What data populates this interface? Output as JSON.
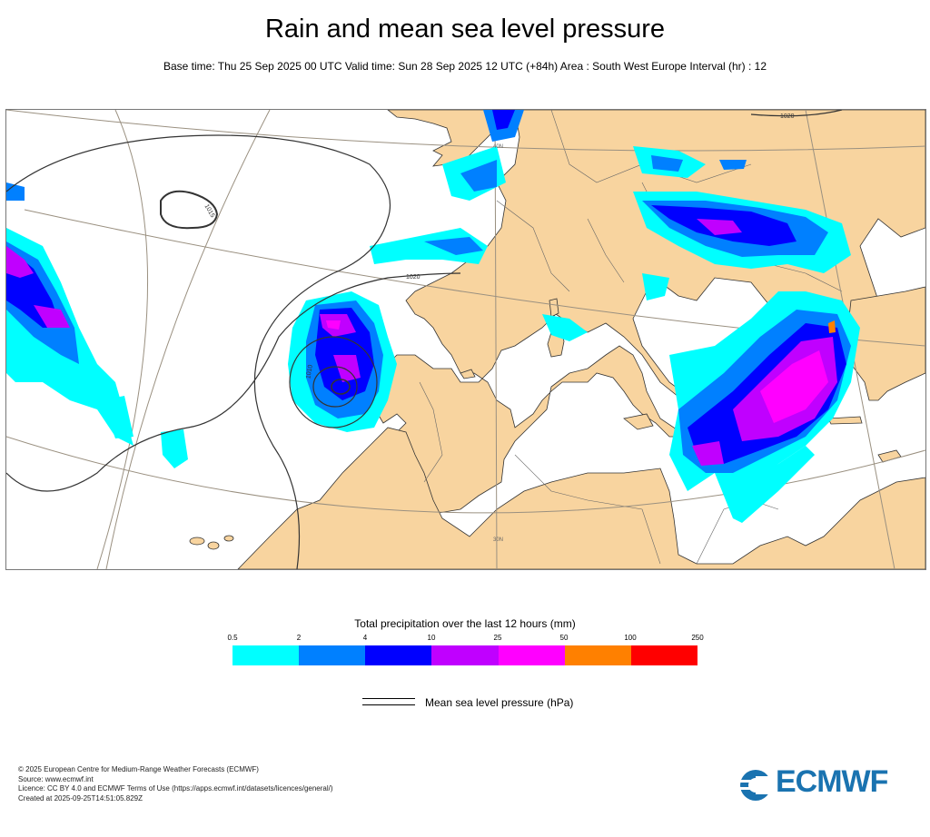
{
  "header": {
    "title": "Rain and mean sea level pressure",
    "subtitle": "Base time: Thu 25 Sep 2025 00 UTC Valid time: Sun 28 Sep 2025 12 UTC (+84h) Area : South West Europe Interval (hr) : 12"
  },
  "map": {
    "isobar_labels": [
      "1020",
      "1020",
      "1015",
      "1010"
    ],
    "gridline_labels": [
      "40N",
      "30N"
    ],
    "colors": {
      "land": "#f8d49f",
      "sea": "#ffffff",
      "coast": "#333333",
      "grid": "#9a9080"
    }
  },
  "legend": {
    "title": "Total precipitation over the last 12 hours (mm)",
    "ticks": [
      "0.5",
      "2",
      "4",
      "10",
      "25",
      "50",
      "100",
      "250"
    ],
    "colors": [
      "#00ffff",
      "#0080ff",
      "#0000ff",
      "#c000ff",
      "#ff00ff",
      "#ff8000",
      "#ff0000"
    ],
    "mslp_label": "Mean sea level pressure (hPa)"
  },
  "footer": {
    "lines": [
      "© 2025 European Centre for Medium-Range Weather Forecasts (ECMWF)",
      "Source: www.ecmwf.int",
      "Licence: CC BY 4.0 and ECMWF Terms of Use (https://apps.ecmwf.int/datasets/licences/general/)",
      "Created at 2025-09-25T14:51:05.829Z"
    ],
    "logo_text": "ECMWF"
  }
}
